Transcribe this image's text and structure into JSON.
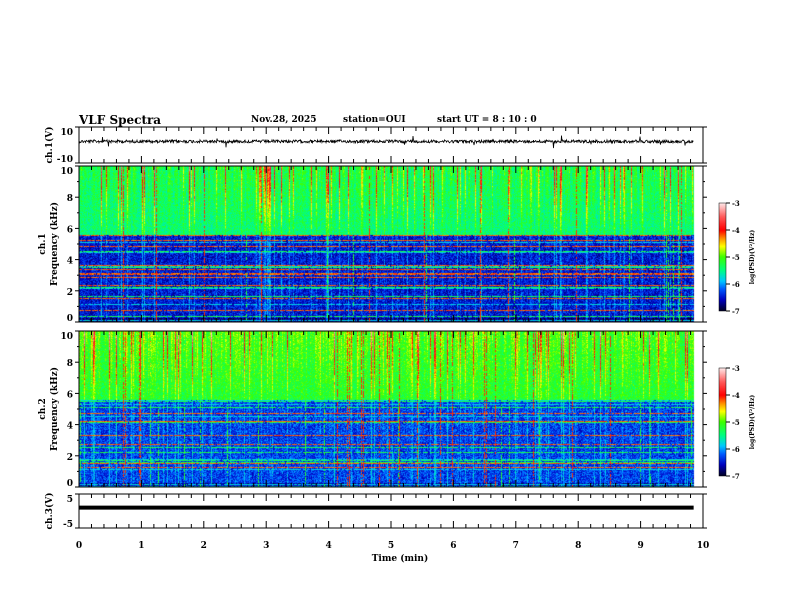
{
  "header": {
    "title": "VLF Spectra",
    "date": "Nov.28, 2025",
    "station": "station=OUI",
    "start": "start  UT =   8 : 10 : 0"
  },
  "chart_data": [
    {
      "type": "line",
      "panel": "ch1",
      "ylabel": "ch.1(V)",
      "ylim": [
        -10,
        10
      ],
      "yticks": [
        "10",
        "-10"
      ],
      "description_values": {
        "baseline": 2
      }
    },
    {
      "type": "heatmap",
      "panel": "spec1",
      "ylabel_top": "ch.1",
      "ylabel": "Frequency (kHz)",
      "ylim": [
        0,
        10
      ],
      "yticks": [
        "0",
        "2",
        "4",
        "6",
        "8",
        "10"
      ],
      "colorbar": {
        "label": "log(PSD)(V²/Hz)",
        "range": [
          -7,
          -3
        ],
        "ticks": [
          "-3",
          "-4",
          "-5",
          "-6",
          "-7"
        ]
      }
    },
    {
      "type": "heatmap",
      "panel": "spec2",
      "ylabel_top": "ch.2",
      "ylabel": "Frequency (kHz)",
      "ylim": [
        0,
        10
      ],
      "yticks": [
        "0",
        "2",
        "4",
        "6",
        "8",
        "10"
      ],
      "colorbar": {
        "label": "log(PSD)(V²/Hz)",
        "range": [
          -7,
          -3
        ],
        "ticks": [
          "-3",
          "-4",
          "-5",
          "-6",
          "-7"
        ]
      }
    },
    {
      "type": "line",
      "panel": "ch3",
      "ylabel": "ch.3(V)",
      "ylim": [
        -5,
        5
      ],
      "yticks": [
        "5",
        "-5"
      ],
      "description_values": {
        "baseline": 1
      }
    }
  ],
  "xaxis": {
    "label": "Time  (min)",
    "xlim": [
      0,
      10
    ],
    "ticks": [
      "0",
      "1",
      "2",
      "3",
      "4",
      "5",
      "6",
      "7",
      "8",
      "9",
      "10"
    ],
    "data_end": 9.85
  }
}
